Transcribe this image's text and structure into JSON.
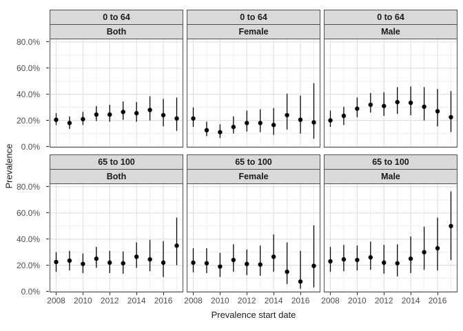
{
  "figure": {
    "background": "#ffffff",
    "y_axis_title": "Prevalence",
    "x_axis_title": "Prevalence start date",
    "y_tick_labels": [
      "80.0%",
      "60.0%",
      "40.0%",
      "20.0%",
      "0.0%"
    ],
    "y_tick_values": [
      80,
      60,
      40,
      20,
      0
    ],
    "x_tick_labels": [
      "2008",
      "2010",
      "2012",
      "2014",
      "2016"
    ],
    "x_tick_values": [
      2008,
      2010,
      2012,
      2014,
      2016
    ],
    "colors": {
      "strip_bg": "#d9d9d9",
      "strip_border": "#4d4d4d",
      "panel_bg": "#ffffff",
      "panel_border": "#4d4d4d",
      "grid_major": "#dcdcdc",
      "grid_minor": "#eeeeee",
      "point": "#000000",
      "tick_text": "#4d4d4d",
      "axis_title_text": "#1a1a1a"
    }
  },
  "chart_data": {
    "type": "scatter",
    "subtype": "pointrange-facet-grid",
    "title": "",
    "xlabel": "Prevalence start date",
    "ylabel": "Prevalence",
    "x": [
      2008,
      2009,
      2010,
      2011,
      2012,
      2013,
      2014,
      2015,
      2016,
      2017
    ],
    "xlim": [
      2007.55,
      2017.45
    ],
    "ylim": [
      0,
      80
    ],
    "y_unit": "percent",
    "grid": "on",
    "legend": "none",
    "row_facets": [
      "0 to 64",
      "65 to 100"
    ],
    "col_facets": [
      "Both",
      "Female",
      "Male"
    ],
    "facets": [
      {
        "row": "0 to 64",
        "col": "Both",
        "estimate": [
          20.5,
          18,
          21,
          24.5,
          24.5,
          26.5,
          25.5,
          28,
          24,
          21.5
        ],
        "ci_low": [
          16.5,
          13.5,
          16.5,
          19.5,
          19,
          20.5,
          19,
          20,
          15.5,
          12
        ],
        "ci_high": [
          25.5,
          23,
          26.5,
          31,
          32,
          34.5,
          34,
          38.5,
          36.5,
          37.5
        ]
      },
      {
        "row": "0 to 64",
        "col": "Female",
        "estimate": [
          21.5,
          12.5,
          11,
          15,
          18,
          18,
          16.5,
          24,
          20.5,
          18.5
        ],
        "ci_low": [
          15,
          8,
          6.5,
          10,
          11.5,
          11,
          9,
          13,
          10,
          6
        ],
        "ci_high": [
          30,
          19,
          17,
          23,
          27.5,
          28.5,
          29.5,
          40.5,
          39,
          48.5
        ]
      },
      {
        "row": "0 to 64",
        "col": "Male",
        "estimate": [
          20,
          23.5,
          29,
          32,
          31,
          34,
          33.5,
          30.5,
          27,
          22.5
        ],
        "ci_low": [
          15,
          16.5,
          22.5,
          26,
          23.5,
          25,
          24,
          20,
          15.5,
          11
        ],
        "ci_high": [
          27.5,
          30.5,
          37.5,
          41,
          41.5,
          45.5,
          46,
          45.5,
          44,
          42.5
        ]
      },
      {
        "row": "65 to 100",
        "col": "Both",
        "estimate": [
          22.5,
          23.5,
          21,
          25,
          22,
          21.5,
          26.5,
          24.5,
          22,
          35
        ],
        "ci_low": [
          15,
          16,
          14,
          18,
          14,
          13.5,
          18,
          15.5,
          11,
          20
        ],
        "ci_high": [
          30,
          31,
          29,
          34,
          31,
          30.5,
          37.5,
          39.5,
          38.5,
          56.5
        ]
      },
      {
        "row": "65 to 100",
        "col": "Female",
        "estimate": [
          22,
          21.5,
          19,
          24,
          21,
          20.5,
          26.5,
          15,
          7.5,
          19.5
        ],
        "ci_low": [
          14.5,
          14,
          11,
          15,
          12.5,
          12,
          15,
          5.5,
          2,
          3
        ],
        "ci_high": [
          33,
          33,
          29.5,
          36,
          32,
          35,
          43.5,
          37.5,
          31,
          50.5
        ]
      },
      {
        "row": "65 to 100",
        "col": "Male",
        "estimate": [
          23,
          24.5,
          24,
          26,
          22,
          21.5,
          25,
          30,
          33,
          50
        ],
        "ci_low": [
          15,
          15.5,
          16,
          16.5,
          13.5,
          11.5,
          14,
          16.5,
          16,
          24
        ],
        "ci_high": [
          34,
          35.5,
          35,
          38,
          35.5,
          36,
          42,
          49.5,
          56.5,
          76.5
        ]
      }
    ]
  }
}
